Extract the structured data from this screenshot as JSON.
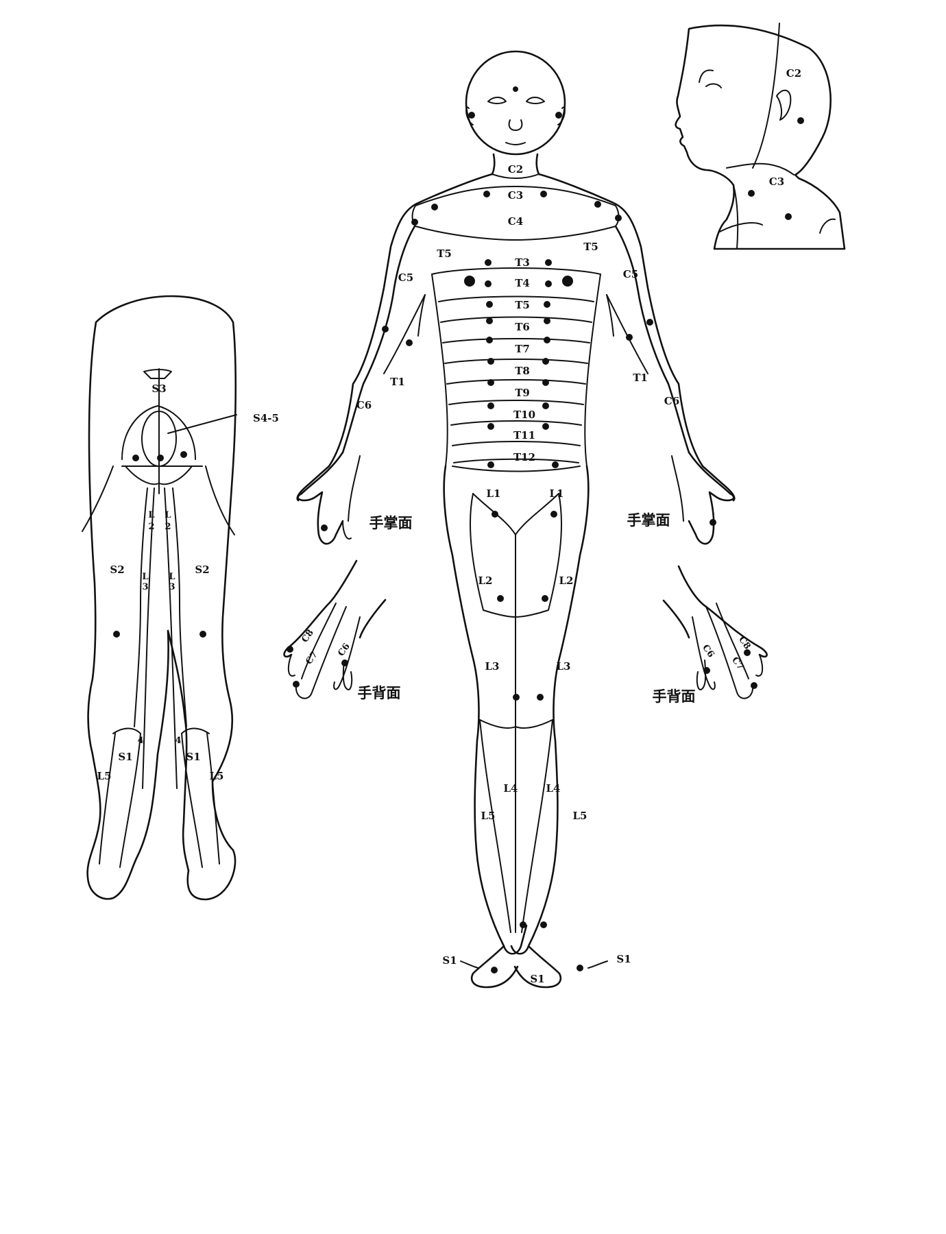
{
  "labels": {
    "head_side": {
      "c2": "C2",
      "c3": "C3"
    },
    "front": {
      "c2": "C2",
      "c3": "C3",
      "c4": "C4",
      "t5_left": "T5",
      "t5_right": "T5",
      "c5_left": "C5",
      "c5_right": "C5",
      "t1_left": "T1",
      "t1_right": "T1",
      "c6_left": "C6",
      "c6_right": "C6",
      "trunk": [
        "T3",
        "T4",
        "T5",
        "T6",
        "T7",
        "T8",
        "T9",
        "T10",
        "T11",
        "T12"
      ],
      "l1_left": "L1",
      "l1_right": "L1",
      "l2_left": "L2",
      "l2_right": "L2",
      "l3_left": "L3",
      "l3_right": "L3",
      "l4_left": "L4",
      "l4_right": "L4",
      "l5_left": "L5",
      "l5_right": "L5",
      "s1_left": "S1",
      "s1_mid": "S1",
      "s1_right": "S1"
    },
    "hands": {
      "palm_left": "手掌面",
      "palm_right": "手掌面",
      "back_left": "手背面",
      "back_right": "手背面",
      "c8_left": "C8",
      "c7_left": "C7",
      "c6_left": "C6",
      "c8_right": "C8",
      "c7_right": "C7",
      "c6_right": "C6"
    },
    "back": {
      "s3": "S3",
      "s45": "S4-5",
      "l2_left": "L",
      "l2_left_n": "2",
      "l2_right": "L",
      "l2_right_n": "2",
      "l3_left": "L",
      "l3_left_n": "3",
      "l3_right": "L",
      "l3_right_n": "3",
      "s2_left": "S2",
      "s2_right": "S2",
      "l4_left": "4",
      "l4_right": "4",
      "s1_left": "S1",
      "s1_right": "S1",
      "l5_left": "L5",
      "l5_right": "L5"
    }
  }
}
